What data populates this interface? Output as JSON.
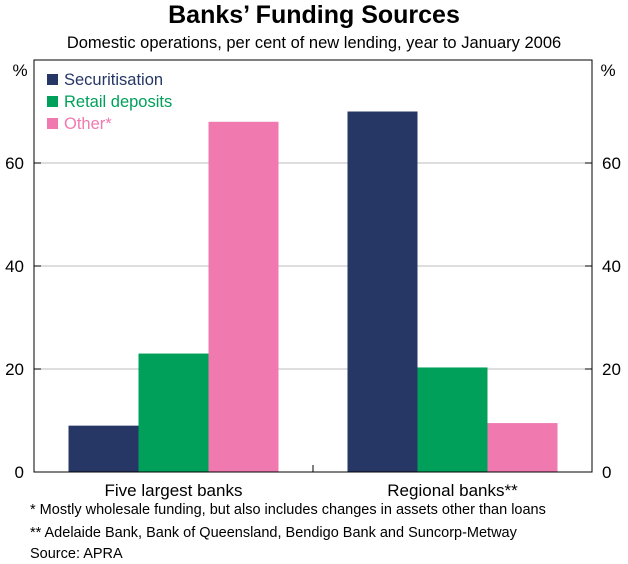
{
  "title": "Banks’ Funding Sources",
  "subtitle": "Domestic operations, per cent of new lending, year to January 2006",
  "chart_data": {
    "type": "bar",
    "categories": [
      "Five largest banks",
      "Regional banks**"
    ],
    "series": [
      {
        "name": "Securitisation",
        "color": "#263766",
        "values": [
          9,
          70
        ]
      },
      {
        "name": "Retail deposits",
        "color": "#00a05a",
        "values": [
          23,
          20.3
        ]
      },
      {
        "name": "Other*",
        "color": "#f07ab0",
        "values": [
          68,
          9.5
        ]
      }
    ],
    "y_unit_left": "%",
    "y_unit_right": "%",
    "ylim": [
      0,
      80
    ],
    "yticks": [
      0,
      20,
      40,
      60
    ],
    "grid": true,
    "legend_position": "top-left"
  },
  "notes": [
    "*   Mostly wholesale funding, but also includes changes in assets other than loans",
    "** Adelaide Bank, Bank of Queensland, Bendigo Bank and Suncorp-Metway"
  ],
  "source": "Source: APRA"
}
